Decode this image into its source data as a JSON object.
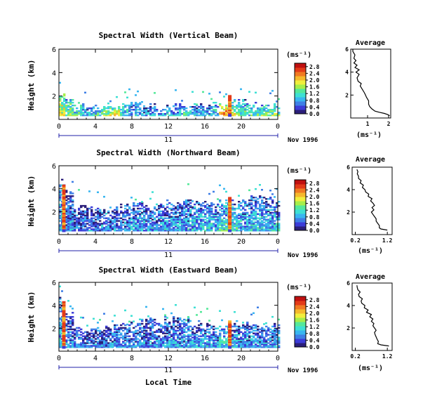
{
  "colors": {
    "scale": [
      "#2b1f7a",
      "#3c3cd8",
      "#3f7fe6",
      "#39b6f0",
      "#3ee0d4",
      "#55e89a",
      "#a6ee4a",
      "#f0ee3c",
      "#f5b82c",
      "#f07a22",
      "#e33a18",
      "#c01010"
    ],
    "date_axis": "#2222aa",
    "average_line": "#000000"
  },
  "chart_data": [
    {
      "type": "heatmap",
      "title": "Spectral Width (Vertical Beam)",
      "ylabel": "Height (km)",
      "xlabel": "",
      "x_ticks": [
        "0",
        "4",
        "8",
        "12",
        "16",
        "20",
        "0"
      ],
      "x_range": [
        0,
        24
      ],
      "y_ticks": [
        "2",
        "4",
        "6"
      ],
      "y_range": [
        0,
        6
      ],
      "date_day": "11",
      "date_label": "Nov 1996",
      "colorbar_unit": "(ms⁻¹)",
      "colorbar_ticks": [
        "0.0",
        "0.4",
        "0.8",
        "1.2",
        "1.6",
        "2.0",
        "2.4",
        "2.8"
      ],
      "colorbar_range": [
        0,
        3.0
      ],
      "echo_top_km": [
        2.2,
        1.6,
        1.3,
        1.1,
        1.0,
        0.9,
        1.0,
        1.2,
        1.3,
        1.2,
        1.1,
        1.0,
        1.0,
        1.1,
        1.0,
        1.1,
        1.2,
        1.2,
        1.3,
        1.5,
        1.6,
        1.3,
        1.2,
        1.4,
        1.3
      ],
      "base_width": [
        2.2,
        1.8,
        1.4,
        1.2,
        1.4,
        1.8,
        2.4,
        1.4,
        1.0,
        0.9,
        1.0,
        1.0,
        1.1,
        1.2,
        1.6,
        1.0,
        1.1,
        1.2,
        2.8,
        1.8,
        1.4,
        1.4,
        1.6,
        1.7,
        1.8
      ],
      "spike_hour": 18.7,
      "spike_top_km": 2.2,
      "average": {
        "title": "Average",
        "xlabel": "(ms⁻¹)",
        "x_ticks": [
          "1",
          "2"
        ],
        "x_range": [
          0.2,
          2.1
        ],
        "y_ticks": [
          "2",
          "4",
          "6"
        ],
        "y_range": [
          0,
          6
        ],
        "height_km": [
          0.2,
          0.3,
          0.4,
          0.5,
          0.6,
          0.8,
          1.0,
          1.2,
          1.5,
          1.8,
          2.0,
          2.2,
          2.5,
          2.8,
          3.0,
          3.2,
          3.5,
          3.8,
          4.0,
          4.2,
          4.4,
          4.6,
          4.8,
          5.0,
          5.2,
          5.5,
          5.8,
          6.0
        ],
        "width": [
          2.05,
          1.95,
          1.8,
          1.55,
          1.35,
          1.2,
          1.1,
          1.05,
          1.05,
          0.95,
          0.9,
          0.85,
          0.75,
          0.65,
          0.7,
          0.55,
          0.5,
          0.6,
          0.45,
          0.6,
          0.4,
          0.5,
          0.35,
          0.45,
          0.35,
          0.4,
          0.3,
          0.3
        ]
      }
    },
    {
      "type": "heatmap",
      "title": "Spectral Width (Northward Beam)",
      "ylabel": "Height (km)",
      "xlabel": "",
      "x_ticks": [
        "0",
        "4",
        "8",
        "12",
        "16",
        "20",
        "0"
      ],
      "x_range": [
        0,
        24
      ],
      "y_ticks": [
        "2",
        "4",
        "6"
      ],
      "y_range": [
        0,
        6
      ],
      "date_day": "11",
      "date_label": "Nov 1996",
      "colorbar_unit": "(ms⁻¹)",
      "colorbar_ticks": [
        "0.0",
        "0.4",
        "0.8",
        "1.2",
        "1.6",
        "2.0",
        "2.4",
        "2.8"
      ],
      "colorbar_range": [
        0,
        3.0
      ],
      "echo_top_km": [
        4.6,
        3.6,
        2.6,
        2.4,
        2.2,
        2.0,
        2.2,
        2.4,
        2.6,
        2.6,
        2.4,
        2.4,
        2.8,
        2.8,
        3.0,
        2.8,
        2.8,
        2.6,
        2.8,
        2.8,
        3.0,
        3.2,
        3.4,
        3.2,
        3.0
      ],
      "base_width": [
        1.0,
        0.7,
        0.6,
        0.6,
        0.6,
        0.7,
        0.7,
        0.7,
        0.8,
        0.8,
        0.9,
        0.9,
        0.9,
        0.8,
        0.9,
        1.0,
        1.1,
        1.0,
        1.3,
        1.2,
        1.0,
        1.0,
        1.0,
        1.0,
        1.1
      ],
      "tower_hour": 0.5,
      "tower_top_km": 4.4,
      "spike_hour": 18.7,
      "spike_top_km": 3.4,
      "average": {
        "title": "Average",
        "xlabel": "(ms⁻¹)",
        "x_ticks": [
          "0.2",
          "1.2"
        ],
        "x_range": [
          0.1,
          1.35
        ],
        "y_ticks": [
          "2",
          "4",
          "6"
        ],
        "y_range": [
          0,
          6
        ],
        "height_km": [
          0.4,
          0.5,
          0.6,
          0.8,
          1.0,
          1.2,
          1.4,
          1.6,
          1.8,
          2.0,
          2.2,
          2.4,
          2.6,
          2.8,
          3.0,
          3.2,
          3.4,
          3.6,
          3.8,
          4.0,
          4.2,
          4.4,
          4.6,
          4.8,
          5.0,
          5.2,
          5.4,
          5.6,
          5.8
        ],
        "width": [
          1.2,
          1.0,
          0.95,
          0.95,
          0.9,
          0.85,
          0.85,
          0.8,
          0.75,
          0.7,
          0.78,
          0.72,
          0.8,
          0.75,
          0.68,
          0.72,
          0.6,
          0.62,
          0.52,
          0.5,
          0.42,
          0.45,
          0.35,
          0.38,
          0.3,
          0.3,
          0.26,
          0.28,
          0.25
        ]
      }
    },
    {
      "type": "heatmap",
      "title": "Spectral Width (Eastward Beam)",
      "ylabel": "Height (km)",
      "xlabel": "Local Time",
      "x_ticks": [
        "0",
        "4",
        "8",
        "12",
        "16",
        "20",
        "0"
      ],
      "x_range": [
        0,
        24
      ],
      "y_ticks": [
        "2",
        "4",
        "6"
      ],
      "y_range": [
        0,
        6
      ],
      "date_day": "11",
      "date_label": "Nov 1996",
      "colorbar_unit": "(ms⁻¹)",
      "colorbar_ticks": [
        "0.0",
        "0.4",
        "0.8",
        "1.2",
        "1.6",
        "2.0",
        "2.4",
        "2.8"
      ],
      "colorbar_range": [
        0,
        3.0
      ],
      "echo_top_km": [
        4.6,
        3.4,
        2.0,
        1.8,
        1.8,
        2.0,
        2.2,
        2.2,
        2.4,
        2.6,
        2.8,
        2.6,
        2.8,
        2.8,
        2.6,
        2.4,
        2.2,
        2.2,
        2.4,
        2.4,
        2.2,
        2.4,
        2.2,
        2.2,
        2.2
      ],
      "base_width": [
        1.0,
        0.7,
        0.6,
        0.6,
        0.6,
        0.6,
        0.7,
        0.7,
        0.7,
        0.7,
        0.8,
        0.8,
        0.8,
        0.8,
        0.8,
        0.8,
        0.9,
        0.8,
        1.2,
        0.9,
        0.8,
        0.8,
        0.8,
        0.8,
        0.8
      ],
      "tower_hour": 0.5,
      "tower_top_km": 4.4,
      "spike_hour": 18.7,
      "spike_top_km": 2.8,
      "average": {
        "title": "Average",
        "xlabel": "(ms⁻¹)",
        "x_ticks": [
          "0.2",
          "1.2"
        ],
        "x_range": [
          0.1,
          1.35
        ],
        "y_ticks": [
          "2",
          "4",
          "6"
        ],
        "y_range": [
          0,
          6
        ],
        "height_km": [
          0.4,
          0.5,
          0.6,
          0.8,
          1.0,
          1.2,
          1.4,
          1.6,
          1.8,
          2.0,
          2.2,
          2.4,
          2.6,
          2.8,
          3.0,
          3.2,
          3.4,
          3.6,
          3.8,
          4.0,
          4.2,
          4.4,
          4.6,
          4.8,
          5.0,
          5.2,
          5.4,
          5.6,
          5.8
        ],
        "width": [
          1.25,
          1.0,
          0.9,
          0.92,
          0.88,
          0.85,
          0.82,
          0.8,
          0.85,
          0.8,
          0.75,
          0.78,
          0.7,
          0.75,
          0.65,
          0.7,
          0.55,
          0.6,
          0.48,
          0.5,
          0.4,
          0.38,
          0.42,
          0.32,
          0.3,
          0.35,
          0.28,
          0.26,
          0.25
        ]
      }
    }
  ]
}
